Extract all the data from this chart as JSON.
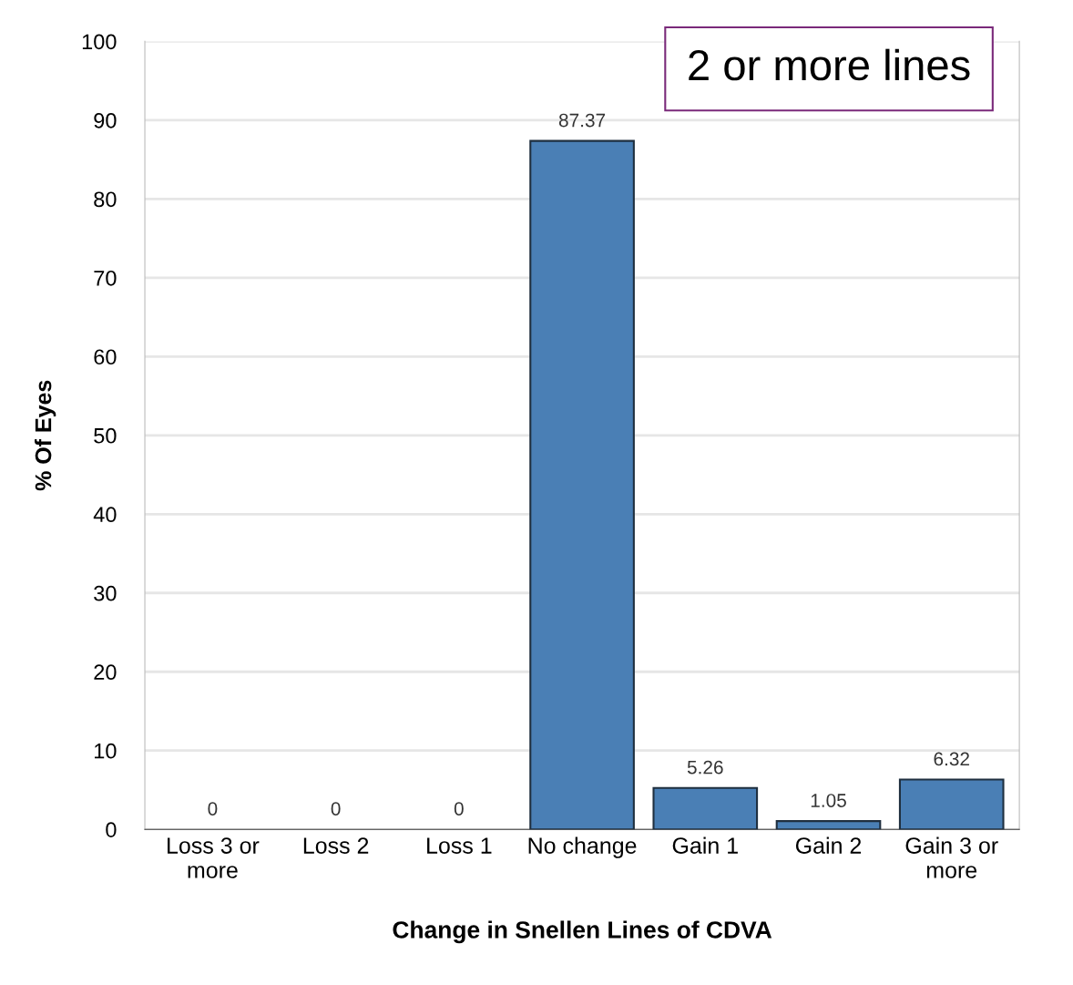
{
  "chart_data": {
    "type": "bar",
    "xlabel": "Change in Snellen Lines of CDVA",
    "ylabel": "% Of Eyes",
    "categories": [
      "Loss 3 or\nmore",
      "Loss 2",
      "Loss 1",
      "No change",
      "Gain 1",
      "Gain 2",
      "Gain 3 or\nmore"
    ],
    "values": [
      0,
      0,
      0,
      87.37,
      5.26,
      1.05,
      6.32
    ],
    "color": "#4a7fb5",
    "data_labels": true,
    "ylim": [
      0,
      100
    ],
    "yticks": [
      0,
      10,
      20,
      30,
      40,
      50,
      60,
      70,
      80,
      90,
      100
    ],
    "grid": "y",
    "annotations": [
      "2 or more lines"
    ]
  }
}
